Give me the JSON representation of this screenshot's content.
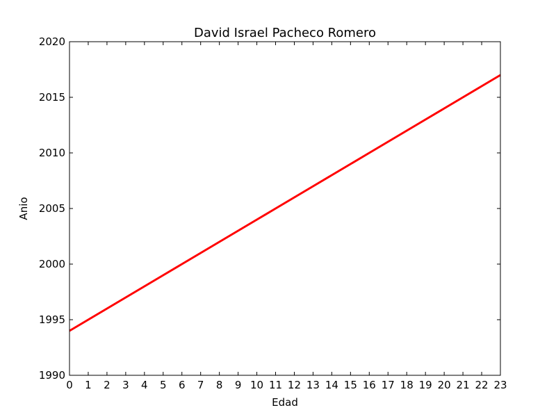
{
  "chart_data": {
    "type": "line",
    "title": "David Israel Pacheco Romero",
    "xlabel": "Edad",
    "ylabel": "Anio",
    "xlim": [
      0,
      23
    ],
    "ylim": [
      1990,
      2020
    ],
    "x_ticks": [
      0,
      1,
      2,
      3,
      4,
      5,
      6,
      7,
      8,
      9,
      10,
      11,
      12,
      13,
      14,
      15,
      16,
      17,
      18,
      19,
      20,
      21,
      22,
      23
    ],
    "y_ticks": [
      1990,
      1995,
      2000,
      2005,
      2010,
      2015,
      2020
    ],
    "grid": false,
    "series": [
      {
        "color": "#ff0000",
        "x": [
          0,
          1,
          2,
          3,
          4,
          5,
          6,
          7,
          8,
          9,
          10,
          11,
          12,
          13,
          14,
          15,
          16,
          17,
          18,
          19,
          20,
          21,
          22,
          23
        ],
        "y": [
          1994,
          1995,
          1996,
          1997,
          1998,
          1999,
          2000,
          2001,
          2002,
          2003,
          2004,
          2005,
          2006,
          2007,
          2008,
          2009,
          2010,
          2011,
          2012,
          2013,
          2014,
          2015,
          2016,
          2017
        ]
      }
    ]
  }
}
